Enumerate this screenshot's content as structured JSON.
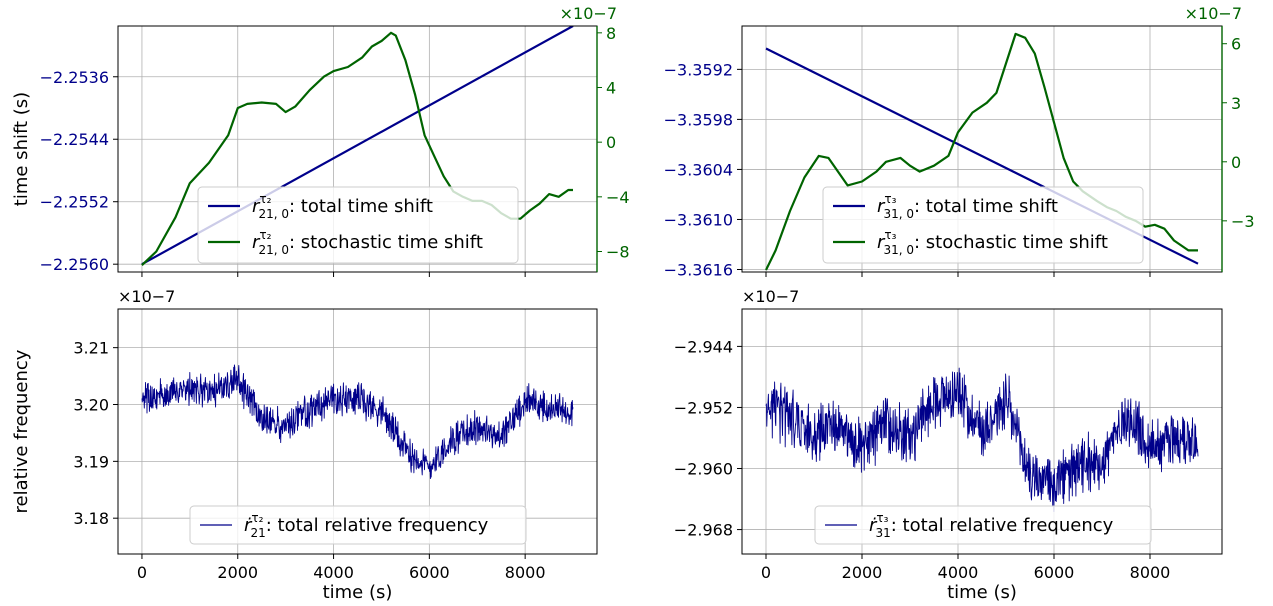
{
  "colors": {
    "primary": "#00008b",
    "secondary": "#006400",
    "grid": "#b0b0b0"
  },
  "chart_data": [
    {
      "type": "line",
      "panel": "top-left",
      "xlim": [
        -500,
        9500
      ],
      "x_ticks": [
        0,
        2000,
        4000,
        6000,
        8000
      ],
      "ylabel": "time shift (s)",
      "ylim": [
        -2.2561,
        -2.25295
      ],
      "y_ticks": [
        -2.2536,
        -2.2544,
        -2.2552,
        -2.256
      ],
      "y_tick_labels": [
        "−2.2536",
        "−2.2544",
        "−2.2552",
        "−2.2560"
      ],
      "secondary_axis": {
        "offset_label": "×10−7",
        "ylim": [
          -9.5,
          8.5
        ],
        "ticks": [
          8,
          4,
          0,
          -4,
          -8
        ],
        "tick_labels": [
          "8",
          "4",
          "0",
          "−4",
          "−8"
        ]
      },
      "legend_placement": "bottom-center",
      "series": [
        {
          "legend": {
            "sym": "r",
            "sup": "τ₂",
            "sub": "21, 0",
            "text": ": total time shift"
          },
          "axis": "left",
          "color": "#00008b",
          "x": [
            0,
            9000
          ],
          "values": [
            -2.256,
            -2.25295
          ]
        },
        {
          "legend": {
            "sym": "r",
            "sup": "τ₂",
            "sub": "21, 0",
            "text": ": stochastic time shift"
          },
          "axis": "right",
          "color": "#006400",
          "x": [
            0,
            300,
            700,
            1000,
            1400,
            1800,
            2000,
            2200,
            2500,
            2800,
            3000,
            3200,
            3500,
            3800,
            4000,
            4300,
            4600,
            4800,
            5000,
            5200,
            5300,
            5500,
            5700,
            5900,
            6100,
            6300,
            6500,
            6700,
            6900,
            7100,
            7300,
            7500,
            7700,
            7900,
            8100,
            8300,
            8500,
            8700,
            8900,
            9000
          ],
          "values": [
            -9.0,
            -8.0,
            -5.5,
            -3.0,
            -1.5,
            0.5,
            2.5,
            2.8,
            2.9,
            2.8,
            2.2,
            2.6,
            3.8,
            4.8,
            5.2,
            5.5,
            6.2,
            7.0,
            7.4,
            8.0,
            7.8,
            6.0,
            3.5,
            0.5,
            -1.0,
            -2.5,
            -3.6,
            -4.0,
            -4.3,
            -4.3,
            -4.6,
            -5.2,
            -5.6,
            -5.6,
            -5.0,
            -4.5,
            -3.8,
            -4.0,
            -3.5,
            -3.5
          ]
        }
      ]
    },
    {
      "type": "line",
      "panel": "top-right",
      "xlim": [
        -500,
        9500
      ],
      "x_ticks": [
        0,
        2000,
        4000,
        6000,
        8000
      ],
      "ylim": [
        -3.36163,
        -3.35868
      ],
      "y_ticks": [
        -3.3592,
        -3.3598,
        -3.3604,
        -3.361,
        -3.3616
      ],
      "y_tick_labels": [
        "−3.3592",
        "−3.3598",
        "−3.3604",
        "−3.3610",
        "−3.3616"
      ],
      "secondary_axis": {
        "offset_label": "×10−7",
        "ylim": [
          -5.6,
          6.9
        ],
        "ticks": [
          6,
          3,
          0,
          -3
        ],
        "tick_labels": [
          "6",
          "3",
          "0",
          "−3"
        ]
      },
      "legend_placement": "bottom-center",
      "series": [
        {
          "legend": {
            "sym": "r",
            "sup": "τ₃",
            "sub": "31, 0",
            "text": ": total time shift"
          },
          "axis": "left",
          "color": "#00008b",
          "x": [
            0,
            9000
          ],
          "values": [
            -3.35895,
            -3.36153
          ]
        },
        {
          "legend": {
            "sym": "r",
            "sup": "τ₃",
            "sub": "31, 0",
            "text": ": stochastic time shift"
          },
          "axis": "right",
          "color": "#006400",
          "x": [
            0,
            200,
            500,
            800,
            1100,
            1300,
            1500,
            1700,
            2000,
            2300,
            2500,
            2800,
            3000,
            3200,
            3500,
            3800,
            4000,
            4300,
            4600,
            4800,
            5000,
            5200,
            5400,
            5600,
            5800,
            6000,
            6200,
            6400,
            6600,
            6900,
            7100,
            7300,
            7500,
            7700,
            7900,
            8100,
            8300,
            8500,
            8800,
            9000
          ],
          "values": [
            -5.5,
            -4.5,
            -2.5,
            -0.8,
            0.3,
            0.2,
            -0.5,
            -1.2,
            -1.0,
            -0.5,
            0.0,
            0.2,
            -0.2,
            -0.5,
            -0.2,
            0.3,
            1.5,
            2.5,
            3.0,
            3.5,
            5.0,
            6.5,
            6.3,
            5.5,
            3.8,
            2.0,
            0.2,
            -1.0,
            -1.5,
            -2.0,
            -2.3,
            -2.5,
            -2.8,
            -3.0,
            -3.3,
            -3.2,
            -3.4,
            -4.0,
            -4.5,
            -4.5
          ]
        }
      ]
    },
    {
      "type": "line",
      "panel": "bottom-left",
      "xlabel": "time (s)",
      "ylabel": "relative frequency",
      "offset_label": "×10−7",
      "xlim": [
        -500,
        9500
      ],
      "x_ticks": [
        0,
        2000,
        4000,
        6000,
        8000
      ],
      "ylim": [
        3.1737,
        3.2168
      ],
      "y_ticks": [
        3.21,
        3.2,
        3.19,
        3.18
      ],
      "y_tick_labels": [
        "3.21",
        "3.20",
        "3.19",
        "3.18"
      ],
      "legend_placement": "bottom-center",
      "series": [
        {
          "legend": {
            "sym": "ṙ",
            "sup": "τ₂",
            "sub": "21",
            "text": ": total relative frequency"
          },
          "color": "#00008b",
          "x": [
            0,
            500,
            1000,
            1500,
            2000,
            2500,
            3000,
            3500,
            4000,
            4500,
            5000,
            5500,
            6000,
            6500,
            7000,
            7500,
            8000,
            8500,
            9000
          ],
          "values": [
            3.2005,
            3.202,
            3.203,
            3.202,
            3.2045,
            3.197,
            3.196,
            3.199,
            3.2005,
            3.201,
            3.199,
            3.192,
            3.189,
            3.194,
            3.196,
            3.194,
            3.201,
            3.199,
            3.199
          ],
          "noise_amplitude": 0.0035
        }
      ]
    },
    {
      "type": "line",
      "panel": "bottom-right",
      "xlabel": "time (s)",
      "offset_label": "×10−7",
      "xlim": [
        -500,
        9500
      ],
      "x_ticks": [
        0,
        2000,
        4000,
        6000,
        8000
      ],
      "ylim": [
        -2.9712,
        -2.9391
      ],
      "y_ticks": [
        -2.944,
        -2.952,
        -2.96,
        -2.968
      ],
      "y_tick_labels": [
        "−2.944",
        "−2.952",
        "−2.960",
        "−2.968"
      ],
      "legend_placement": "bottom-center",
      "series": [
        {
          "legend": {
            "sym": "ṙ",
            "sup": "τ₃",
            "sub": "31",
            "text": ": total relative frequency"
          },
          "color": "#00008b",
          "x": [
            0,
            500,
            1000,
            1500,
            2000,
            2500,
            3000,
            3500,
            4000,
            4500,
            5000,
            5500,
            6000,
            6500,
            7000,
            7500,
            8000,
            8500,
            9000
          ],
          "values": [
            -2.952,
            -2.953,
            -2.956,
            -2.954,
            -2.957,
            -2.954,
            -2.956,
            -2.951,
            -2.95,
            -2.955,
            -2.951,
            -2.961,
            -2.962,
            -2.96,
            -2.959,
            -2.953,
            -2.957,
            -2.956,
            -2.956
          ],
          "noise_amplitude": 0.0045
        }
      ]
    }
  ]
}
